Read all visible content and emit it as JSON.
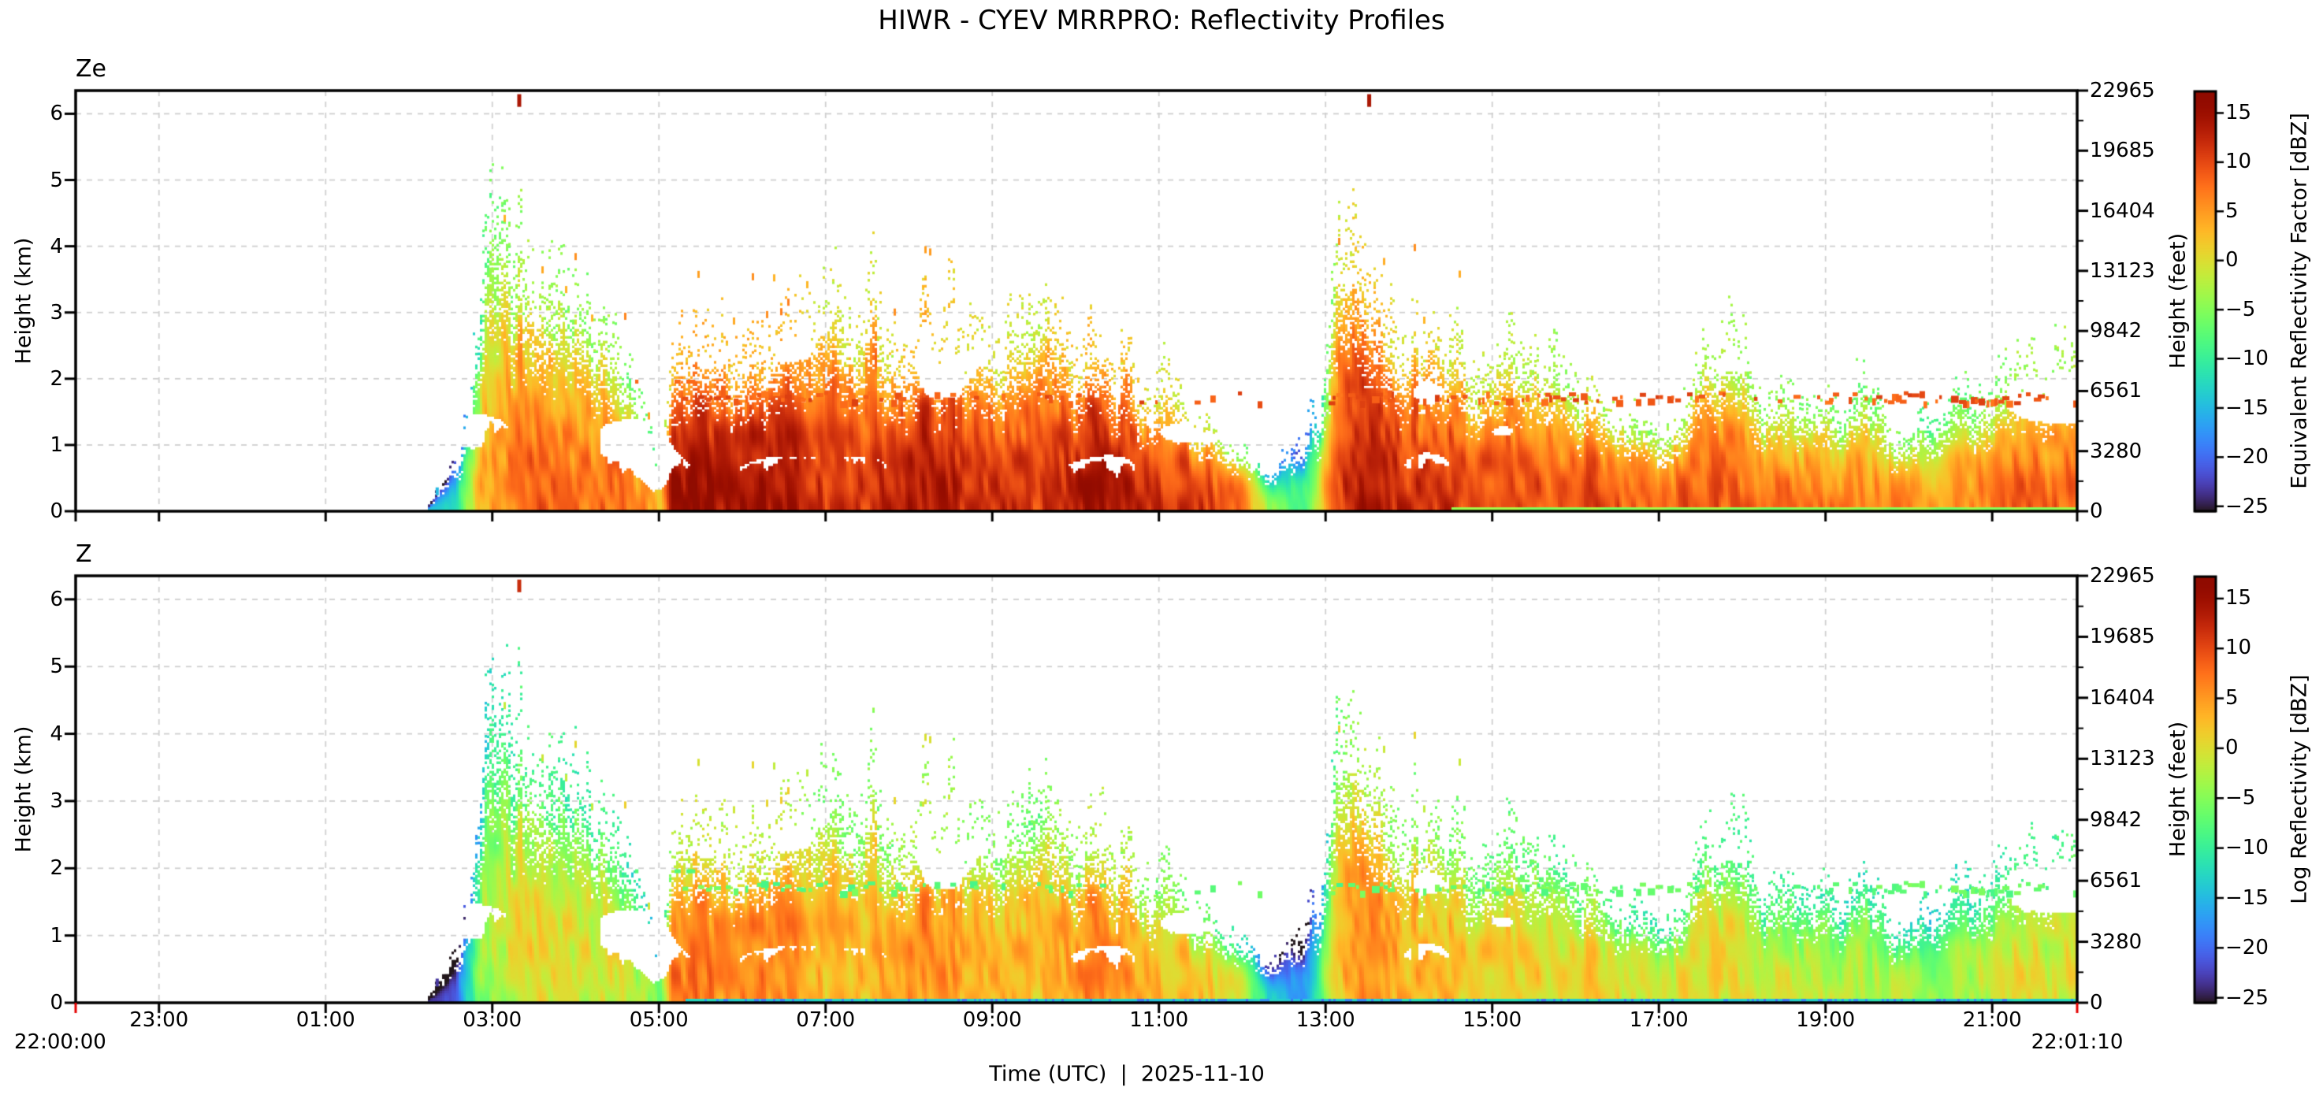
{
  "title": "HIWR - CYEV MRRPRO: Reflectivity Profiles",
  "xlabel": "Time (UTC)  |  2025-11-10",
  "x_start_label": "22:00:00",
  "x_end_label": "22:01:10",
  "chart_data": {
    "type": "heatmap",
    "x_axis": {
      "label": "Time (UTC)  |  2025-11-10",
      "start_time_label": "22:00:00",
      "end_time_label": "22:01:10",
      "span_hours": 24.0194,
      "tick_hours_from_start": [
        1,
        3,
        5,
        7,
        9,
        11,
        13,
        15,
        17,
        19,
        21,
        23
      ],
      "tick_labels": [
        "23:00",
        "01:00",
        "03:00",
        "05:00",
        "07:00",
        "09:00",
        "11:00",
        "13:00",
        "15:00",
        "17:00",
        "19:00",
        "21:00"
      ],
      "end_tick_color_bottom_axis": "#e50000"
    },
    "y_axis": {
      "left_label": "Height (km)",
      "right_label": "Height (feet)",
      "km_ticks": [
        0,
        1,
        2,
        3,
        4,
        5,
        6
      ],
      "km_range": [
        0,
        6.35
      ],
      "feet_ticks": [
        0,
        3280,
        6561,
        9842,
        13123,
        16404,
        19685,
        22965
      ],
      "feet_axis_max": 22965,
      "grid": true,
      "grid_color": "#d0d0d0"
    },
    "colorbar": {
      "colormap": "turbo",
      "value_range_dbz": [
        -25.5,
        17.2
      ],
      "ticks": [
        15,
        10,
        5,
        0,
        -5,
        -10,
        -15,
        -20,
        -25
      ]
    },
    "panels": [
      {
        "panel_label": "Ze",
        "colorbar_label": "Equivalent Reflectivity Factor [dBZ]",
        "dbz_offset_surface": 0,
        "dbz_offset_aloft": 0,
        "bright_band_dbz": 9,
        "top_spike_marks": [
          {
            "hours_from_start": 5.3,
            "height_km": 6.2,
            "dbz": 14
          },
          {
            "hours_from_start": 15.5,
            "height_km": 6.2,
            "dbz": 14
          }
        ],
        "surface_gate_line": {
          "start_hours": 16.5,
          "dbz": -4
        }
      },
      {
        "panel_label": "Z",
        "colorbar_label": "Log Reflectivity [dBZ]",
        "dbz_offset_surface": -9,
        "dbz_offset_aloft": -5,
        "bright_band_dbz": -7,
        "top_spike_marks": [
          {
            "hours_from_start": 5.3,
            "height_km": 6.2,
            "dbz": 12
          }
        ],
        "surface_gate_line": {
          "start_hours": 7.3,
          "dbz": -13
        }
      }
    ],
    "echo_structure": {
      "time_profile_keyframes_hours_topkm_dbz": [
        [
          0,
          0,
          -14
        ],
        [
          4.2,
          0,
          -14
        ],
        [
          4.45,
          0.5,
          -12
        ],
        [
          4.6,
          0.9,
          -8
        ],
        [
          4.75,
          1.6,
          -2
        ],
        [
          4.9,
          3.0,
          3
        ],
        [
          5.1,
          3.4,
          6
        ],
        [
          5.35,
          3.3,
          8
        ],
        [
          5.6,
          2.9,
          8
        ],
        [
          5.9,
          2.4,
          8
        ],
        [
          6.2,
          2.3,
          7
        ],
        [
          6.5,
          1.9,
          7
        ],
        [
          6.8,
          1.1,
          5
        ],
        [
          7.0,
          0.6,
          3
        ],
        [
          7.15,
          1.8,
          15
        ],
        [
          7.5,
          2.1,
          16
        ],
        [
          8.0,
          2.3,
          16
        ],
        [
          8.5,
          2.2,
          15
        ],
        [
          9.0,
          2.5,
          13
        ],
        [
          9.5,
          2.6,
          12
        ],
        [
          10.0,
          2.2,
          12
        ],
        [
          10.5,
          2.6,
          13
        ],
        [
          11.0,
          2.1,
          12
        ],
        [
          11.6,
          2.7,
          12
        ],
        [
          12.1,
          2.3,
          13
        ],
        [
          12.6,
          1.8,
          12
        ],
        [
          13.1,
          1.6,
          11
        ],
        [
          13.6,
          1.2,
          10
        ],
        [
          14.0,
          0.8,
          6
        ],
        [
          14.3,
          0.5,
          -5
        ],
        [
          14.7,
          0.7,
          -8
        ],
        [
          14.95,
          1.6,
          2
        ],
        [
          15.15,
          3.3,
          10
        ],
        [
          15.45,
          2.6,
          13
        ],
        [
          15.8,
          2.0,
          13
        ],
        [
          16.2,
          2.2,
          12
        ],
        [
          16.8,
          1.8,
          12
        ],
        [
          17.3,
          2.0,
          11
        ],
        [
          17.8,
          1.6,
          10
        ],
        [
          18.3,
          1.5,
          9
        ],
        [
          18.8,
          1.1,
          8
        ],
        [
          19.2,
          0.9,
          7
        ],
        [
          19.6,
          2.1,
          9
        ],
        [
          20.0,
          1.8,
          9
        ],
        [
          20.5,
          1.5,
          8
        ],
        [
          21.0,
          1.3,
          8
        ],
        [
          21.5,
          1.5,
          7
        ],
        [
          21.9,
          0.9,
          6
        ],
        [
          22.3,
          1.1,
          6
        ],
        [
          22.8,
          1.5,
          8
        ],
        [
          23.3,
          1.6,
          8
        ],
        [
          23.7,
          1.7,
          9
        ],
        [
          24.02,
          1.7,
          10
        ]
      ],
      "echo_spikes_hours_topkm": [
        [
          5.3,
          3.9
        ],
        [
          9.55,
          3.9
        ],
        [
          10.5,
          3.3
        ],
        [
          11.65,
          2.9
        ],
        [
          15.2,
          3.6
        ],
        [
          16.05,
          2.9
        ],
        [
          19.65,
          2.3
        ]
      ],
      "virga_periods_hours": [
        [
          4.6,
          11.0
        ],
        [
          14.9,
          16.8
        ]
      ],
      "bright_band": {
        "height_km_range": [
          1.62,
          1.78
        ],
        "periods_hours_density": [
          [
            7.2,
            10.5,
            0.55
          ],
          [
            10.5,
            14.2,
            0.3
          ],
          [
            14.95,
            18.5,
            0.5
          ],
          [
            18.5,
            21.5,
            0.35
          ],
          [
            21.5,
            24.02,
            0.55
          ]
        ],
        "secondary_row": {
          "height_km": 1.95,
          "period_hours": [
            6.0,
            7.4
          ],
          "density": 0.2
        }
      },
      "isolated_echoes": [
        {
          "hours": 4.32,
          "height_km": 0.3,
          "dbz": -15
        }
      ]
    }
  }
}
